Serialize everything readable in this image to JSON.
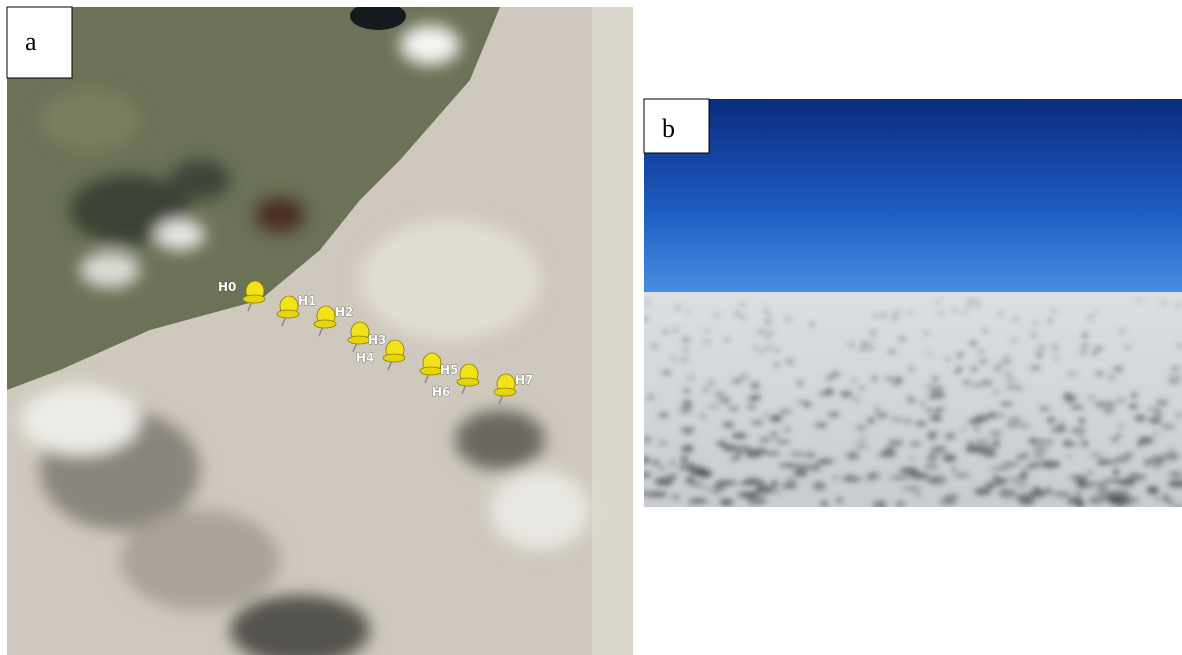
{
  "panels": [
    {
      "label": "a",
      "pins": [
        "H0",
        "H1",
        "H2",
        "H3",
        "H4",
        "H5",
        "H6",
        "H7"
      ]
    },
    {
      "label": "b"
    }
  ]
}
